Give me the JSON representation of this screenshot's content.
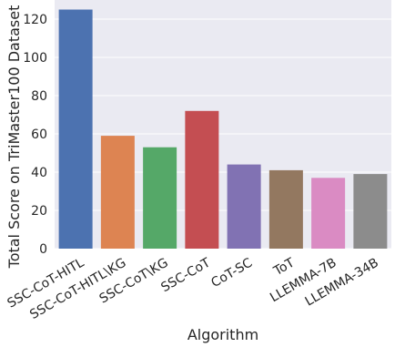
{
  "chart_data": {
    "type": "bar",
    "title": "",
    "xlabel": "Algorithm",
    "ylabel": "Total Score on TriMaster100 Dataset",
    "categories": [
      "SSC-CoT-HITL",
      "SSC-CoT-HITL\\KG",
      "SSC-CoT\\KG",
      "SSC-CoT",
      "CoT-SC",
      "ToT",
      "LLEMMA-7B",
      "LLEMMA-34B"
    ],
    "values": [
      125,
      59,
      53,
      72,
      44,
      41,
      37,
      39
    ],
    "colors": [
      "#4c72b0",
      "#dd8452",
      "#55a868",
      "#c44e52",
      "#8172b3",
      "#937860",
      "#da8bc3",
      "#8c8c8c"
    ],
    "ylim": [
      0,
      130
    ],
    "yticks": [
      0,
      20,
      40,
      60,
      80,
      100,
      120
    ],
    "grid": true,
    "background": "#eaeaf2",
    "legend": "none"
  }
}
